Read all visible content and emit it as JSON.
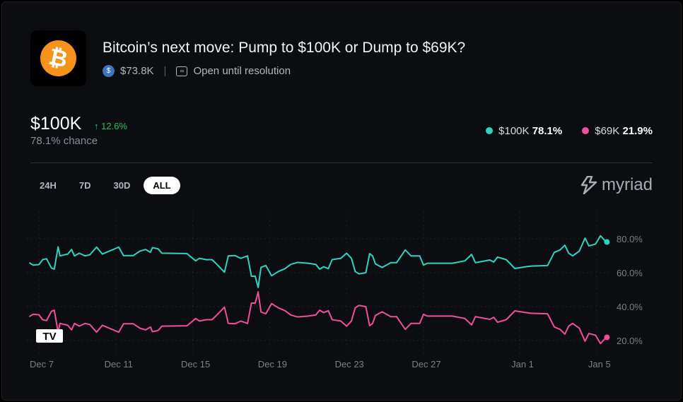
{
  "market": {
    "title": "Bitcoin’s next move: Pump to $100K or Dump to $69K?",
    "volume": "$73.8K",
    "status": "Open until resolution"
  },
  "headline": {
    "outcome": "$100K",
    "change": "12.6%",
    "chance": "78.1% chance"
  },
  "legend": [
    {
      "label": "$100K",
      "value": "78.1%",
      "color": "#2dd4bf"
    },
    {
      "label": "$69K",
      "value": "21.9%",
      "color": "#f0509a"
    }
  ],
  "ranges": [
    "24H",
    "7D",
    "30D",
    "ALL"
  ],
  "active_range": "ALL",
  "brand": "myriad",
  "chart_data": {
    "type": "line",
    "x_unit": "days since Dec 7",
    "xticks": [
      {
        "day": 0,
        "label": "Dec 7"
      },
      {
        "day": 4,
        "label": "Dec 11"
      },
      {
        "day": 8,
        "label": "Dec 15"
      },
      {
        "day": 12,
        "label": "Dec 19"
      },
      {
        "day": 16,
        "label": "Dec 23"
      },
      {
        "day": 20,
        "label": "Dec 27"
      },
      {
        "day": 25,
        "label": "Jan 1"
      },
      {
        "day": 29,
        "label": "Jan 5"
      }
    ],
    "yticks": [
      {
        "v": 80,
        "label": "80.0%"
      },
      {
        "v": 60,
        "label": "60.0%"
      },
      {
        "v": 40,
        "label": "40.0%"
      },
      {
        "v": 20,
        "label": "20.0%"
      }
    ],
    "series": [
      {
        "name": "$100K",
        "color": "#2dd4bf",
        "points": [
          [
            -0.5,
            65.9
          ],
          [
            -0.3,
            64.5
          ],
          [
            0,
            64.8
          ],
          [
            0.2,
            67.7
          ],
          [
            0.4,
            68.2
          ],
          [
            0.65,
            62.8
          ],
          [
            0.8,
            62.1
          ],
          [
            1,
            75.2
          ],
          [
            1.1,
            69.9
          ],
          [
            1.5,
            71
          ],
          [
            1.7,
            73.7
          ],
          [
            1.85,
            69.9
          ],
          [
            2.1,
            71.5
          ],
          [
            2.4,
            69.9
          ],
          [
            2.65,
            70.6
          ],
          [
            3,
            75.1
          ],
          [
            3.3,
            71
          ],
          [
            3.6,
            72.4
          ],
          [
            4.15,
            75.1
          ],
          [
            4.4,
            70.1
          ],
          [
            4.9,
            70.1
          ],
          [
            5.25,
            72.7
          ],
          [
            5.55,
            73.7
          ],
          [
            5.8,
            72
          ],
          [
            5.9,
            74.8
          ],
          [
            6.2,
            74.1
          ],
          [
            6.4,
            71.5
          ],
          [
            7.7,
            71.3
          ],
          [
            8.15,
            67
          ],
          [
            8.35,
            68.5
          ],
          [
            8.7,
            67.7
          ],
          [
            9,
            67.7
          ],
          [
            9.2,
            65.6
          ],
          [
            9.65,
            60.3
          ],
          [
            9.85,
            69.9
          ],
          [
            10.2,
            70.1
          ],
          [
            10.5,
            68.5
          ],
          [
            10.85,
            69.9
          ],
          [
            11.05,
            57.9
          ],
          [
            11.25,
            57.9
          ],
          [
            11.4,
            51.3
          ],
          [
            11.55,
            63.2
          ],
          [
            11.8,
            64.2
          ],
          [
            12.1,
            58.2
          ],
          [
            12.45,
            60.7
          ],
          [
            12.8,
            62.4
          ],
          [
            13.1,
            64.9
          ],
          [
            13.45,
            66.1
          ],
          [
            14,
            65.6
          ],
          [
            14.4,
            64.9
          ],
          [
            14.6,
            62.1
          ],
          [
            14.8,
            63.5
          ],
          [
            15.05,
            62.4
          ],
          [
            15.25,
            67.7
          ],
          [
            15.7,
            68.5
          ],
          [
            16,
            71.5
          ],
          [
            16.25,
            68.5
          ],
          [
            16.45,
            60.7
          ],
          [
            16.65,
            59.3
          ],
          [
            17,
            60
          ],
          [
            17.2,
            71.3
          ],
          [
            17.35,
            69.9
          ],
          [
            17.5,
            65.2
          ],
          [
            17.85,
            63.1
          ],
          [
            18.3,
            65.9
          ],
          [
            18.6,
            65.9
          ],
          [
            19.05,
            73.4
          ],
          [
            19.35,
            69.9
          ],
          [
            19.8,
            69.9
          ],
          [
            20,
            64.5
          ],
          [
            20.2,
            65.6
          ],
          [
            21.5,
            65.6
          ],
          [
            22.15,
            67
          ],
          [
            22.5,
            70.8
          ],
          [
            22.7,
            65.9
          ],
          [
            23.45,
            67.5
          ],
          [
            23.65,
            66.3
          ],
          [
            23.85,
            69.2
          ],
          [
            24.3,
            67.7
          ],
          [
            24.75,
            62.5
          ],
          [
            25.3,
            63.5
          ],
          [
            25.6,
            63.9
          ],
          [
            26.45,
            64.2
          ],
          [
            26.8,
            72
          ],
          [
            27.1,
            73.4
          ],
          [
            27.35,
            76.2
          ],
          [
            27.55,
            71.5
          ],
          [
            27.75,
            69.9
          ],
          [
            28.1,
            72.7
          ],
          [
            28.4,
            80.4
          ],
          [
            28.6,
            75.8
          ],
          [
            28.95,
            76.9
          ],
          [
            29.2,
            81.8
          ],
          [
            29.5,
            78.1
          ]
        ]
      },
      {
        "name": "$69K",
        "color": "#f0509a",
        "points": [
          [
            -0.5,
            34.1
          ],
          [
            -0.3,
            35.5
          ],
          [
            0,
            35.2
          ],
          [
            0.2,
            32.3
          ],
          [
            0.4,
            31.8
          ],
          [
            0.65,
            37.2
          ],
          [
            0.8,
            37.9
          ],
          [
            1,
            24.8
          ],
          [
            1.1,
            30.1
          ],
          [
            1.5,
            29
          ],
          [
            1.7,
            26.3
          ],
          [
            1.85,
            30.1
          ],
          [
            2.1,
            28.5
          ],
          [
            2.4,
            30.1
          ],
          [
            2.65,
            29.4
          ],
          [
            3,
            24.9
          ],
          [
            3.3,
            29
          ],
          [
            3.6,
            27.6
          ],
          [
            4.15,
            24.9
          ],
          [
            4.4,
            29.9
          ],
          [
            4.9,
            29.9
          ],
          [
            5.25,
            27.3
          ],
          [
            5.55,
            26.3
          ],
          [
            5.8,
            28
          ],
          [
            5.9,
            25.2
          ],
          [
            6.2,
            25.9
          ],
          [
            6.4,
            28.5
          ],
          [
            7.7,
            28.7
          ],
          [
            8.15,
            33
          ],
          [
            8.35,
            31.5
          ],
          [
            8.7,
            32.3
          ],
          [
            9,
            32.3
          ],
          [
            9.2,
            34.4
          ],
          [
            9.65,
            39.7
          ],
          [
            9.85,
            30.1
          ],
          [
            10.2,
            29.9
          ],
          [
            10.5,
            31.5
          ],
          [
            10.85,
            30.1
          ],
          [
            11.05,
            42.1
          ],
          [
            11.25,
            42.1
          ],
          [
            11.4,
            48.7
          ],
          [
            11.55,
            36.8
          ],
          [
            11.8,
            35.8
          ],
          [
            12.1,
            41.8
          ],
          [
            12.45,
            39.3
          ],
          [
            12.8,
            37.6
          ],
          [
            13.1,
            35.1
          ],
          [
            13.45,
            33.9
          ],
          [
            14,
            34.4
          ],
          [
            14.4,
            35.1
          ],
          [
            14.6,
            37.9
          ],
          [
            14.8,
            36.5
          ],
          [
            15.05,
            37.6
          ],
          [
            15.25,
            32.3
          ],
          [
            15.7,
            31.5
          ],
          [
            16,
            28.5
          ],
          [
            16.25,
            31.5
          ],
          [
            16.45,
            39.3
          ],
          [
            16.65,
            40.7
          ],
          [
            17,
            40
          ],
          [
            17.2,
            28.7
          ],
          [
            17.35,
            30.1
          ],
          [
            17.5,
            34.8
          ],
          [
            17.85,
            36.9
          ],
          [
            18.3,
            34.1
          ],
          [
            18.6,
            34.1
          ],
          [
            19.05,
            26.6
          ],
          [
            19.35,
            30.1
          ],
          [
            19.8,
            30.1
          ],
          [
            20,
            35.5
          ],
          [
            20.2,
            34.4
          ],
          [
            21.5,
            34.4
          ],
          [
            22.15,
            33
          ],
          [
            22.5,
            29.2
          ],
          [
            22.7,
            34.1
          ],
          [
            23.45,
            32.5
          ],
          [
            23.65,
            33.7
          ],
          [
            23.85,
            30.8
          ],
          [
            24.3,
            32.3
          ],
          [
            24.75,
            37.5
          ],
          [
            25.3,
            36.5
          ],
          [
            25.6,
            36.1
          ],
          [
            26.45,
            35.8
          ],
          [
            26.8,
            28
          ],
          [
            27.1,
            26.6
          ],
          [
            27.35,
            23.8
          ],
          [
            27.55,
            28.5
          ],
          [
            27.75,
            30.1
          ],
          [
            28.1,
            27.3
          ],
          [
            28.4,
            19.6
          ],
          [
            28.6,
            24.2
          ],
          [
            28.95,
            23.1
          ],
          [
            29.2,
            18.2
          ],
          [
            29.5,
            21.9
          ]
        ]
      }
    ]
  }
}
